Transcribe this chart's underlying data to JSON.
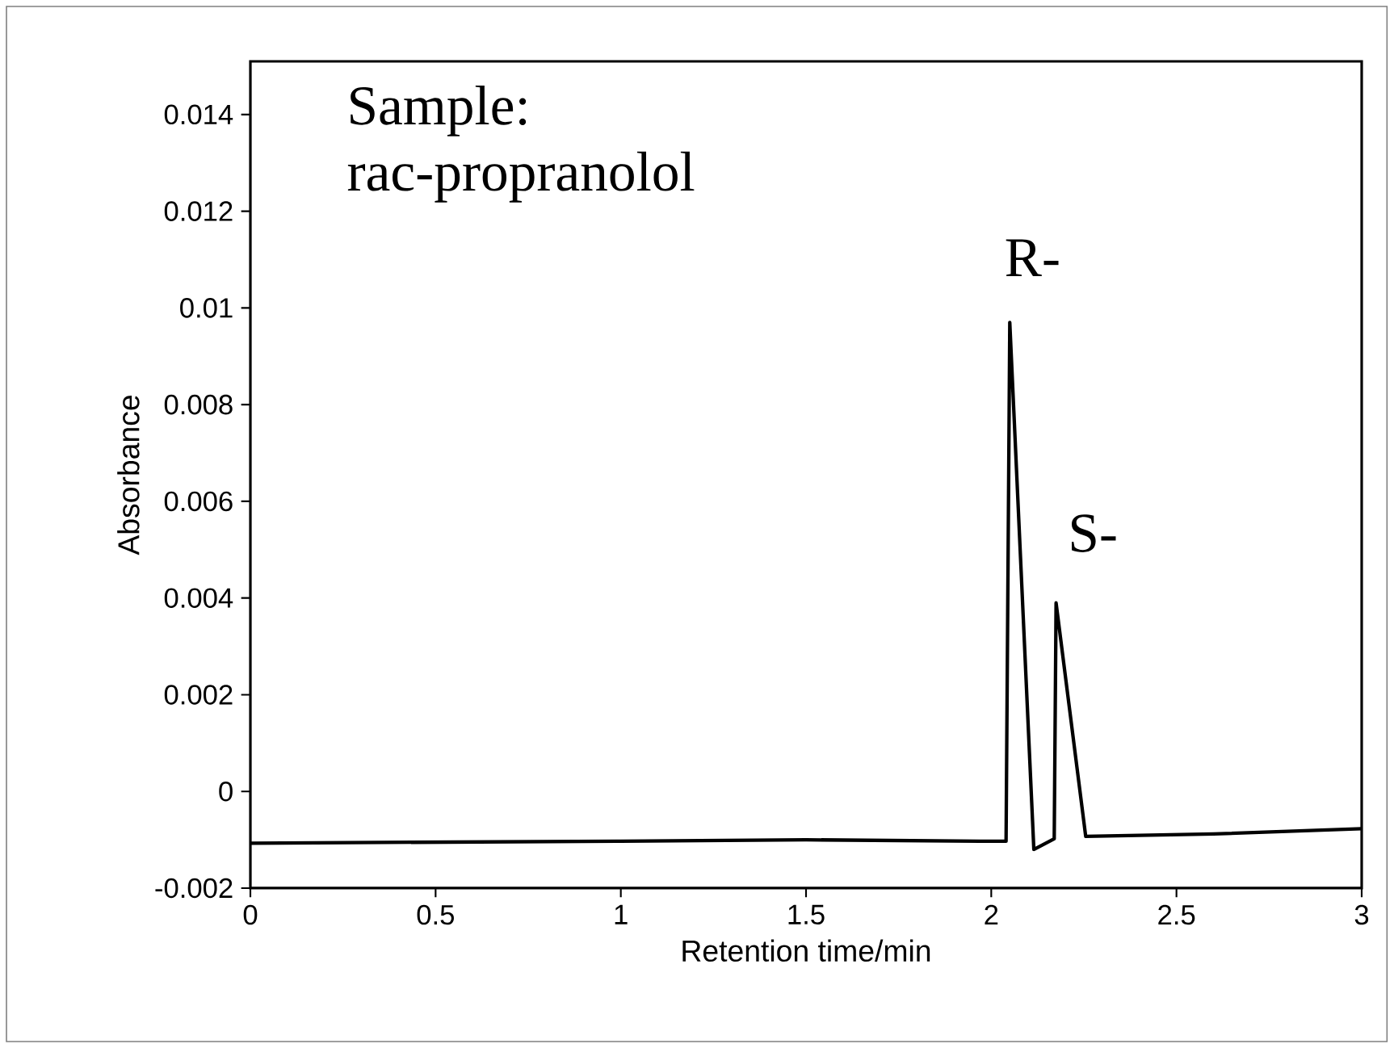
{
  "chart_data": {
    "type": "line",
    "xlabel": "Retention time/min",
    "ylabel": "Absorbance",
    "x": [
      0,
      0.5,
      1,
      1.5,
      1.97,
      2.04,
      2.05,
      2.115,
      2.17,
      2.175,
      2.255,
      2.6,
      3
    ],
    "series": [
      {
        "color": "#000000",
        "values": [
          -0.00107,
          -0.00105,
          -0.00103,
          -0.001,
          -0.00103,
          -0.00103,
          0.0097,
          -0.0012,
          -0.00098,
          0.0039,
          -0.00093,
          -0.00088,
          -0.00077
        ]
      }
    ],
    "xlim": [
      0,
      3
    ],
    "ylim": [
      -0.002,
      0.0151
    ],
    "xticks": [
      0,
      0.5,
      1,
      1.5,
      2,
      2.5,
      3
    ],
    "yticks": [
      -0.002,
      0,
      0.002,
      0.004,
      0.006,
      0.008,
      0.01,
      0.012,
      0.014
    ],
    "annotations": [
      "Sample:",
      "rac-propranolol",
      {
        "text": "R-",
        "x": 2.05,
        "y": 0.0097
      },
      {
        "text": "S-",
        "x": 2.175,
        "y": 0.0039
      }
    ],
    "grid": false,
    "marker": "none",
    "line_style": "solid"
  }
}
